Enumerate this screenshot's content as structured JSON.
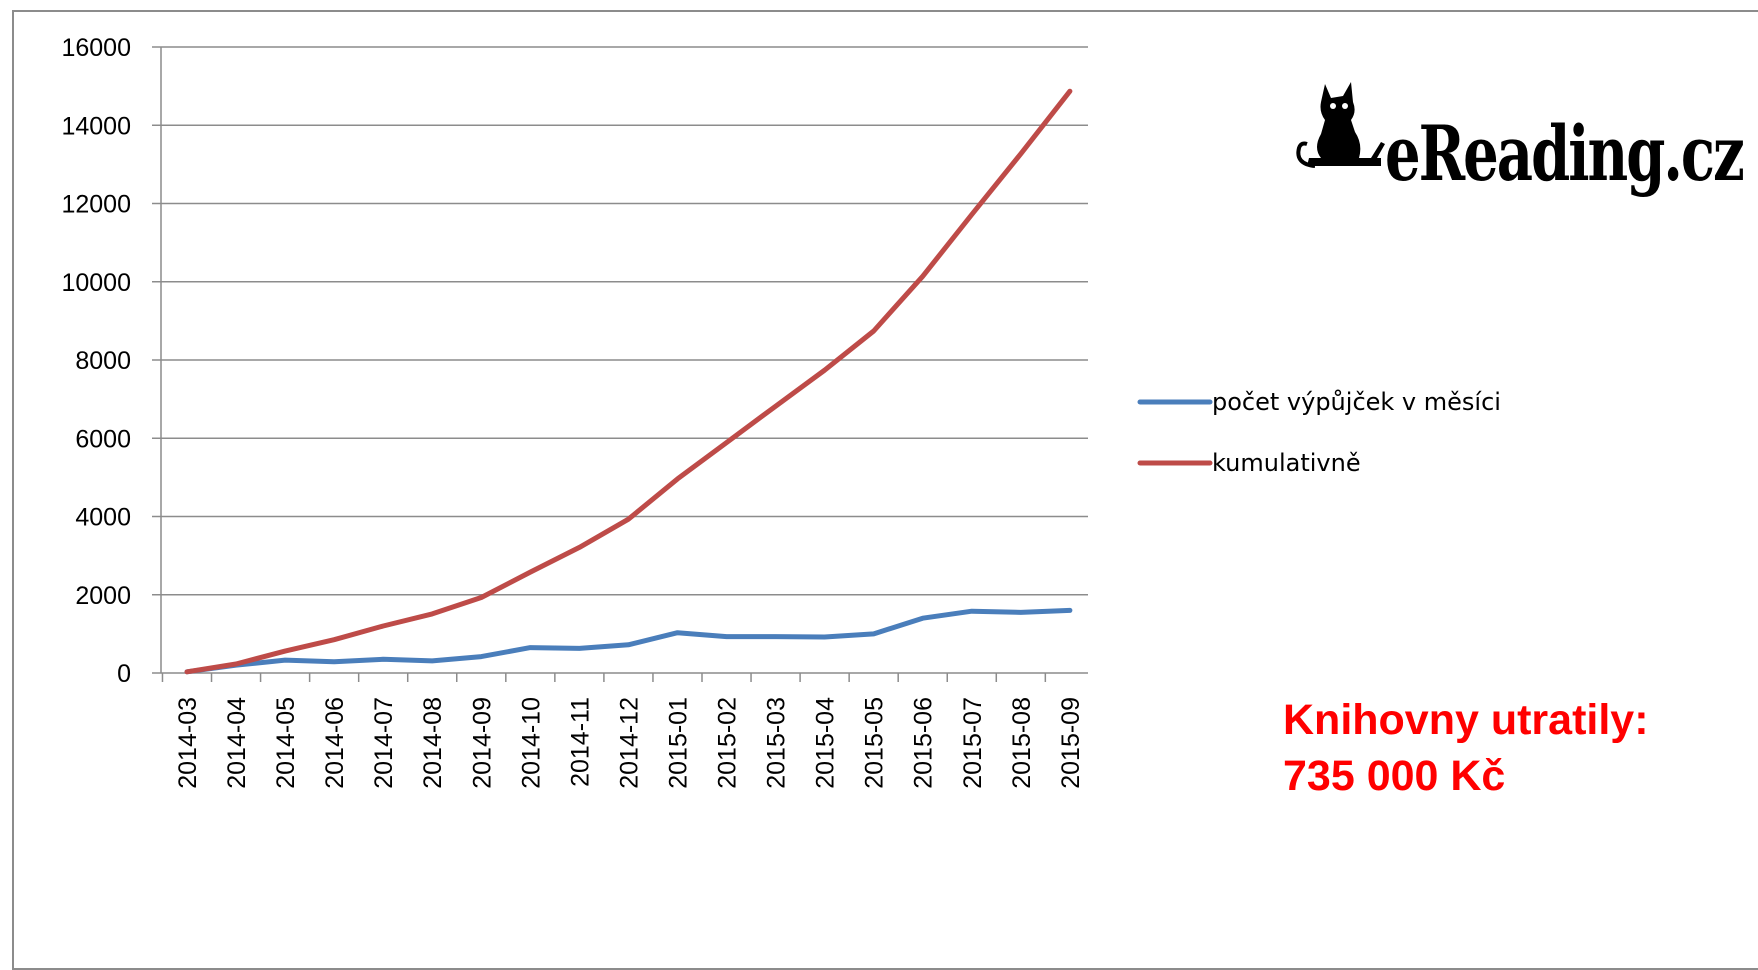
{
  "logo": {
    "text": "eReading.cz",
    "icon": "cat-icon"
  },
  "note": {
    "line1": "Knihovny utratily:",
    "line2": "735 000 Kč",
    "color": "#ff0000"
  },
  "chart_data": {
    "type": "line",
    "title": "",
    "xlabel": "",
    "ylabel": "",
    "ylim": [
      0,
      16000
    ],
    "yticks": [
      0,
      2000,
      4000,
      6000,
      8000,
      10000,
      12000,
      14000,
      16000
    ],
    "grid": true,
    "legend_position": "right",
    "categories": [
      "2014-03",
      "2014-04",
      "2014-05",
      "2014-06",
      "2014-07",
      "2014-08",
      "2014-09",
      "2014-10",
      "2014-11",
      "2014-12",
      "2015-01",
      "2015-02",
      "2015-03",
      "2015-04",
      "2015-05",
      "2015-06",
      "2015-07",
      "2015-08",
      "2015-09"
    ],
    "series": [
      {
        "name": "počet výpůjček  v měsíci",
        "color": "#4a7ebb",
        "values": [
          30,
          200,
          330,
          290,
          350,
          310,
          420,
          650,
          630,
          720,
          1030,
          930,
          930,
          920,
          1000,
          1400,
          1580,
          1550,
          1600
        ]
      },
      {
        "name": "kumulativně",
        "color": "#be4b48",
        "values": [
          30,
          230,
          560,
          850,
          1200,
          1510,
          1930,
          2580,
          3210,
          3930,
          4960,
          5890,
          6820,
          7740,
          8740,
          10140,
          11720,
          13270,
          14870
        ]
      }
    ]
  }
}
